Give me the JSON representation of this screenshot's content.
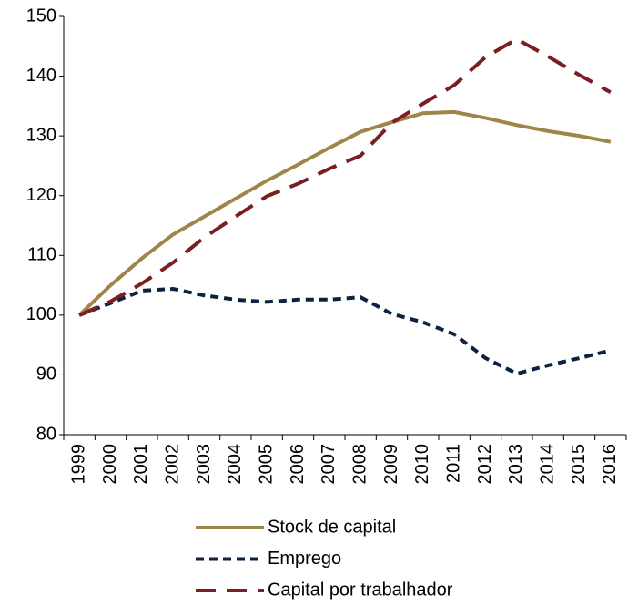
{
  "chart_data": {
    "type": "line",
    "categories": [
      "1999",
      "2000",
      "2001",
      "2002",
      "2003",
      "2004",
      "2005",
      "2006",
      "2007",
      "2008",
      "2009",
      "2010",
      "2011",
      "2012",
      "2013",
      "2014",
      "2015",
      "2016"
    ],
    "series": [
      {
        "name": "Stock de capital",
        "color": "#a0854a",
        "dash": "solid",
        "values": [
          100,
          105,
          109.5,
          113.5,
          116.5,
          119.5,
          122.5,
          125.2,
          128,
          130.7,
          132.3,
          133.8,
          134,
          133,
          131.8,
          130.8,
          130,
          129
        ]
      },
      {
        "name": "Emprego",
        "color": "#0d2240",
        "dash": "short",
        "values": [
          100,
          102,
          104.1,
          104.4,
          103.3,
          102.6,
          102.2,
          102.6,
          102.6,
          103,
          100.2,
          98.8,
          96.8,
          92.8,
          90.2,
          91.6,
          92.8,
          94.1
        ]
      },
      {
        "name": "Capital por trabalhador",
        "color": "#7b1e22",
        "dash": "long",
        "values": [
          100,
          102.3,
          105.3,
          108.8,
          113,
          116.5,
          119.9,
          122,
          124.5,
          126.7,
          132.2,
          135.4,
          138.5,
          143.2,
          146.2,
          143.3,
          140.2,
          137.3
        ]
      }
    ],
    "ylim": [
      80,
      150
    ],
    "yticks": [
      80,
      90,
      100,
      110,
      120,
      130,
      140,
      150
    ],
    "grid": false,
    "legend": "bottom"
  }
}
